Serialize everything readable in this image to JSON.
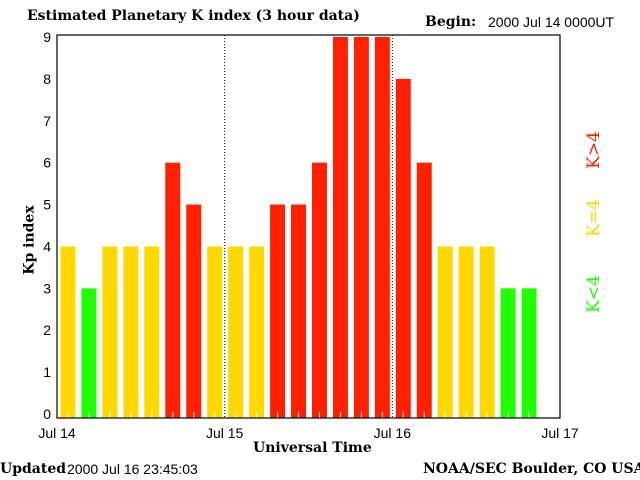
{
  "chart_data": {
    "type": "bar",
    "title": "Estimated Planetary K index (3 hour data)",
    "begin_label": "Begin:",
    "begin_value": "2000 Jul 14 0000UT",
    "xlabel": "Universal Time",
    "ylabel": "Kp index",
    "ylim": [
      0,
      9
    ],
    "yticks": [
      "0",
      "1",
      "2",
      "3",
      "4",
      "5",
      "6",
      "7",
      "8",
      "9"
    ],
    "xticks": [
      "Jul 14",
      "Jul 15",
      "Jul 16",
      "Jul 17"
    ],
    "values": [
      4,
      3,
      4,
      4,
      4,
      6,
      5,
      4,
      4,
      4,
      5,
      5,
      6,
      9,
      9,
      9,
      8,
      6,
      4,
      4,
      4,
      3,
      3
    ],
    "bars_per_day": 8,
    "days": 3,
    "legend": [
      {
        "label": "K>4",
        "color": "#ff2000"
      },
      {
        "label": "K=4",
        "color": "#ffd800"
      },
      {
        "label": "K<4",
        "color": "#20ff00"
      }
    ],
    "legend_placement": "right",
    "updated_label": "Updated",
    "updated_value": "2000 Jul 16 23:45:03",
    "source": "NOAA/SEC Boulder, CO USA"
  }
}
